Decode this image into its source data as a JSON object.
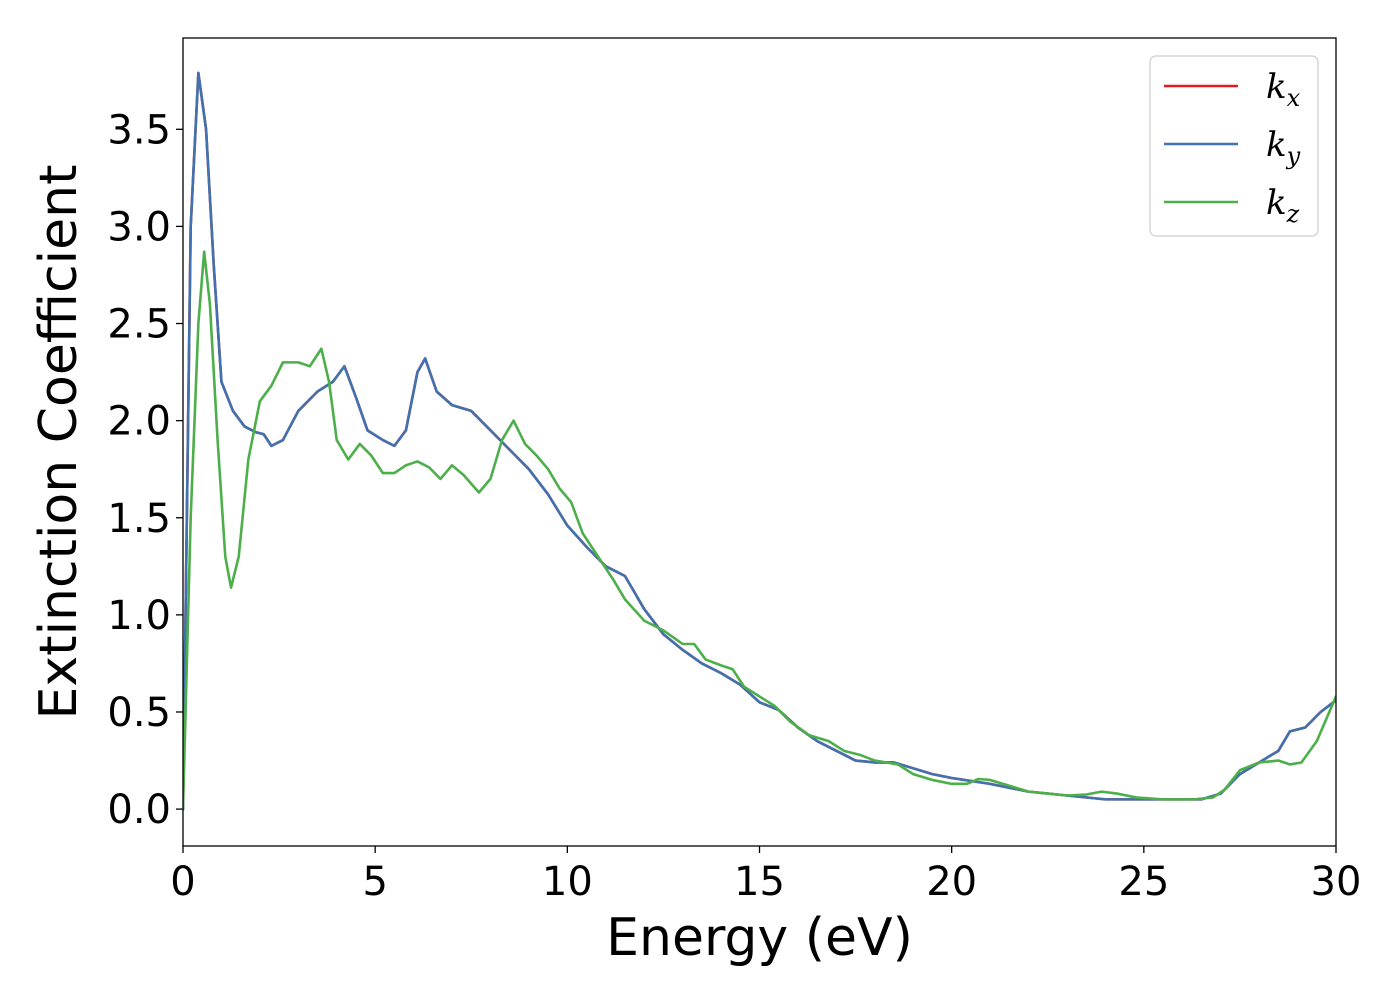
{
  "chart_data": {
    "type": "line",
    "xlabel": "Energy (eV)",
    "ylabel": "Extinction Coefficient",
    "xlim": [
      0,
      30
    ],
    "ylim": [
      -0.19,
      3.97
    ],
    "xticks": [
      0,
      5,
      10,
      15,
      20,
      25,
      30
    ],
    "yticks": [
      0.0,
      0.5,
      1.0,
      1.5,
      2.0,
      2.5,
      3.0,
      3.5
    ],
    "grid": false,
    "legend_position": "top-right",
    "series": [
      {
        "name": "k",
        "subscript": "x",
        "color": "#e41a1c",
        "points": [
          [
            0,
            0.0
          ],
          [
            0.1,
            1.5
          ],
          [
            0.2,
            3.0
          ],
          [
            0.4,
            3.79
          ],
          [
            0.6,
            3.5
          ],
          [
            0.8,
            2.8
          ],
          [
            1.0,
            2.2
          ],
          [
            1.3,
            2.05
          ],
          [
            1.6,
            1.97
          ],
          [
            1.9,
            1.94
          ],
          [
            2.1,
            1.93
          ],
          [
            2.3,
            1.87
          ],
          [
            2.6,
            1.9
          ],
          [
            3.0,
            2.05
          ],
          [
            3.5,
            2.15
          ],
          [
            3.9,
            2.2
          ],
          [
            4.2,
            2.28
          ],
          [
            4.5,
            2.12
          ],
          [
            4.8,
            1.95
          ],
          [
            5.2,
            1.9
          ],
          [
            5.5,
            1.87
          ],
          [
            5.8,
            1.95
          ],
          [
            6.1,
            2.25
          ],
          [
            6.3,
            2.32
          ],
          [
            6.6,
            2.15
          ],
          [
            7.0,
            2.08
          ],
          [
            7.5,
            2.05
          ],
          [
            8.0,
            1.95
          ],
          [
            8.5,
            1.85
          ],
          [
            9.0,
            1.75
          ],
          [
            9.5,
            1.62
          ],
          [
            10.0,
            1.46
          ],
          [
            10.5,
            1.35
          ],
          [
            11.0,
            1.25
          ],
          [
            11.5,
            1.2
          ],
          [
            12.0,
            1.03
          ],
          [
            12.5,
            0.9
          ],
          [
            13.0,
            0.82
          ],
          [
            13.5,
            0.75
          ],
          [
            14.0,
            0.7
          ],
          [
            14.5,
            0.64
          ],
          [
            15.0,
            0.55
          ],
          [
            15.5,
            0.51
          ],
          [
            16.0,
            0.42
          ],
          [
            16.5,
            0.35
          ],
          [
            17.0,
            0.3
          ],
          [
            17.5,
            0.25
          ],
          [
            18.0,
            0.24
          ],
          [
            18.5,
            0.24
          ],
          [
            19.0,
            0.21
          ],
          [
            19.5,
            0.18
          ],
          [
            20.0,
            0.16
          ],
          [
            21.0,
            0.13
          ],
          [
            22.0,
            0.09
          ],
          [
            23.0,
            0.07
          ],
          [
            24.0,
            0.05
          ],
          [
            25.0,
            0.05
          ],
          [
            26.0,
            0.05
          ],
          [
            26.5,
            0.05
          ],
          [
            27.0,
            0.08
          ],
          [
            27.5,
            0.18
          ],
          [
            28.0,
            0.24
          ],
          [
            28.5,
            0.3
          ],
          [
            28.8,
            0.4
          ],
          [
            29.2,
            0.42
          ],
          [
            29.6,
            0.5
          ],
          [
            30.0,
            0.56
          ]
        ]
      },
      {
        "name": "k",
        "subscript": "y",
        "color": "#3f72af",
        "points": [
          [
            0,
            0.0
          ],
          [
            0.1,
            1.5
          ],
          [
            0.2,
            3.0
          ],
          [
            0.4,
            3.79
          ],
          [
            0.6,
            3.5
          ],
          [
            0.8,
            2.8
          ],
          [
            1.0,
            2.2
          ],
          [
            1.3,
            2.05
          ],
          [
            1.6,
            1.97
          ],
          [
            1.9,
            1.94
          ],
          [
            2.1,
            1.93
          ],
          [
            2.3,
            1.87
          ],
          [
            2.6,
            1.9
          ],
          [
            3.0,
            2.05
          ],
          [
            3.5,
            2.15
          ],
          [
            3.9,
            2.2
          ],
          [
            4.2,
            2.28
          ],
          [
            4.5,
            2.12
          ],
          [
            4.8,
            1.95
          ],
          [
            5.2,
            1.9
          ],
          [
            5.5,
            1.87
          ],
          [
            5.8,
            1.95
          ],
          [
            6.1,
            2.25
          ],
          [
            6.3,
            2.32
          ],
          [
            6.6,
            2.15
          ],
          [
            7.0,
            2.08
          ],
          [
            7.5,
            2.05
          ],
          [
            8.0,
            1.95
          ],
          [
            8.5,
            1.85
          ],
          [
            9.0,
            1.75
          ],
          [
            9.5,
            1.62
          ],
          [
            10.0,
            1.46
          ],
          [
            10.5,
            1.35
          ],
          [
            11.0,
            1.25
          ],
          [
            11.5,
            1.2
          ],
          [
            12.0,
            1.03
          ],
          [
            12.5,
            0.9
          ],
          [
            13.0,
            0.82
          ],
          [
            13.5,
            0.75
          ],
          [
            14.0,
            0.7
          ],
          [
            14.5,
            0.64
          ],
          [
            15.0,
            0.55
          ],
          [
            15.5,
            0.51
          ],
          [
            16.0,
            0.42
          ],
          [
            16.5,
            0.35
          ],
          [
            17.0,
            0.3
          ],
          [
            17.5,
            0.25
          ],
          [
            18.0,
            0.24
          ],
          [
            18.5,
            0.24
          ],
          [
            19.0,
            0.21
          ],
          [
            19.5,
            0.18
          ],
          [
            20.0,
            0.16
          ],
          [
            21.0,
            0.13
          ],
          [
            22.0,
            0.09
          ],
          [
            23.0,
            0.07
          ],
          [
            24.0,
            0.05
          ],
          [
            25.0,
            0.05
          ],
          [
            26.0,
            0.05
          ],
          [
            26.5,
            0.05
          ],
          [
            27.0,
            0.08
          ],
          [
            27.5,
            0.18
          ],
          [
            28.0,
            0.24
          ],
          [
            28.5,
            0.3
          ],
          [
            28.8,
            0.4
          ],
          [
            29.2,
            0.42
          ],
          [
            29.6,
            0.5
          ],
          [
            30.0,
            0.56
          ]
        ]
      },
      {
        "name": "k",
        "subscript": "z",
        "color": "#4daf4a",
        "points": [
          [
            0,
            0.0
          ],
          [
            0.2,
            1.5
          ],
          [
            0.4,
            2.5
          ],
          [
            0.55,
            2.87
          ],
          [
            0.7,
            2.6
          ],
          [
            0.9,
            1.9
          ],
          [
            1.1,
            1.3
          ],
          [
            1.25,
            1.14
          ],
          [
            1.45,
            1.3
          ],
          [
            1.7,
            1.8
          ],
          [
            2.0,
            2.1
          ],
          [
            2.3,
            2.18
          ],
          [
            2.6,
            2.3
          ],
          [
            3.0,
            2.3
          ],
          [
            3.3,
            2.28
          ],
          [
            3.6,
            2.37
          ],
          [
            3.8,
            2.2
          ],
          [
            4.0,
            1.9
          ],
          [
            4.3,
            1.8
          ],
          [
            4.6,
            1.88
          ],
          [
            4.9,
            1.82
          ],
          [
            5.2,
            1.73
          ],
          [
            5.5,
            1.73
          ],
          [
            5.8,
            1.77
          ],
          [
            6.1,
            1.79
          ],
          [
            6.4,
            1.76
          ],
          [
            6.7,
            1.7
          ],
          [
            7.0,
            1.77
          ],
          [
            7.3,
            1.72
          ],
          [
            7.7,
            1.63
          ],
          [
            8.0,
            1.7
          ],
          [
            8.3,
            1.9
          ],
          [
            8.6,
            2.0
          ],
          [
            8.9,
            1.88
          ],
          [
            9.2,
            1.82
          ],
          [
            9.5,
            1.75
          ],
          [
            9.8,
            1.65
          ],
          [
            10.1,
            1.58
          ],
          [
            10.4,
            1.42
          ],
          [
            10.8,
            1.3
          ],
          [
            11.2,
            1.18
          ],
          [
            11.5,
            1.08
          ],
          [
            12.0,
            0.97
          ],
          [
            12.5,
            0.92
          ],
          [
            13.0,
            0.85
          ],
          [
            13.3,
            0.85
          ],
          [
            13.6,
            0.77
          ],
          [
            14.0,
            0.74
          ],
          [
            14.3,
            0.72
          ],
          [
            14.6,
            0.63
          ],
          [
            15.0,
            0.58
          ],
          [
            15.4,
            0.53
          ],
          [
            15.8,
            0.45
          ],
          [
            16.3,
            0.38
          ],
          [
            16.8,
            0.35
          ],
          [
            17.2,
            0.3
          ],
          [
            17.6,
            0.28
          ],
          [
            18.0,
            0.25
          ],
          [
            18.6,
            0.23
          ],
          [
            19.0,
            0.18
          ],
          [
            19.5,
            0.15
          ],
          [
            20.0,
            0.13
          ],
          [
            20.4,
            0.13
          ],
          [
            20.7,
            0.155
          ],
          [
            21.0,
            0.15
          ],
          [
            21.5,
            0.12
          ],
          [
            22.0,
            0.09
          ],
          [
            22.5,
            0.08
          ],
          [
            23.0,
            0.07
          ],
          [
            23.5,
            0.075
          ],
          [
            23.9,
            0.09
          ],
          [
            24.3,
            0.08
          ],
          [
            24.8,
            0.06
          ],
          [
            25.5,
            0.05
          ],
          [
            26.3,
            0.05
          ],
          [
            26.8,
            0.06
          ],
          [
            27.1,
            0.1
          ],
          [
            27.5,
            0.2
          ],
          [
            28.0,
            0.24
          ],
          [
            28.5,
            0.25
          ],
          [
            28.8,
            0.23
          ],
          [
            29.1,
            0.24
          ],
          [
            29.5,
            0.35
          ],
          [
            30.0,
            0.58
          ]
        ]
      }
    ]
  }
}
